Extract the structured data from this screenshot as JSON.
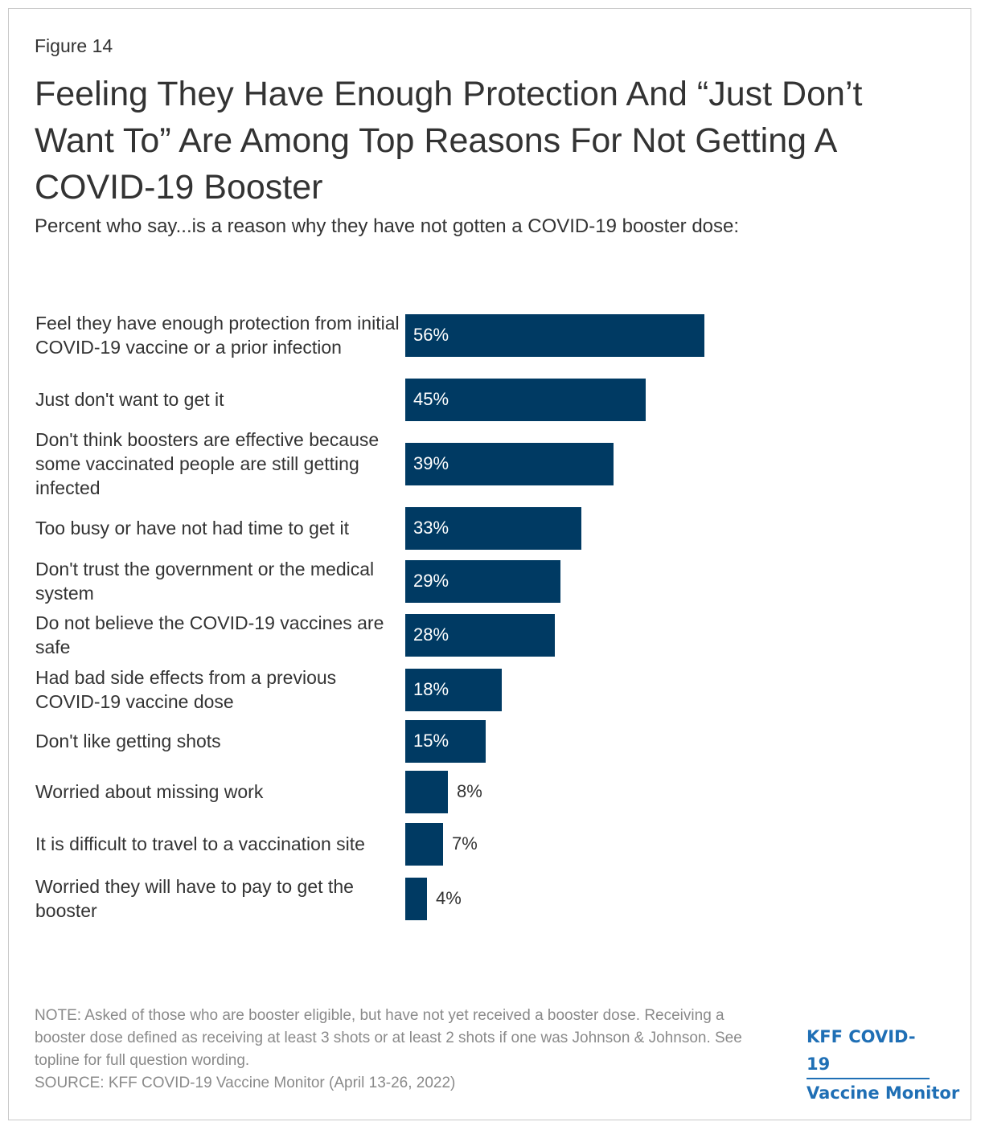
{
  "figure_label": "Figure 14",
  "title": "Feeling They Have Enough Protection And “Just Don’t Want To” Are Among Top Reasons For Not Getting A COVID-19 Booster",
  "subtitle": "Percent who say...is a reason why they have not gotten a COVID-19 booster dose:",
  "bar_color": "#003a63",
  "chart_data": {
    "type": "bar",
    "orientation": "horizontal",
    "categories": [
      "Feel they have enough protection from initial COVID-19 vaccine or a prior infection",
      "Just don't want to get it",
      "Don't think boosters are effective because some vaccinated people are still getting infected",
      "Too busy or have not had time to get it",
      "Don't trust the government or the medical system",
      "Do not believe the COVID-19 vaccines are safe",
      "Had bad side effects from a previous COVID-19 vaccine dose",
      "Don't like getting shots",
      "Worried about missing work",
      "It is difficult to travel to a vaccination site",
      "Worried they will have to pay to get the booster"
    ],
    "values": [
      56,
      45,
      39,
      33,
      29,
      28,
      18,
      15,
      8,
      7,
      4
    ],
    "labels": [
      "56%",
      "45%",
      "39%",
      "33%",
      "29%",
      "28%",
      "18%",
      "15%",
      "8%",
      "7%",
      "4%"
    ],
    "unit": "%",
    "xlim": [
      0,
      100
    ],
    "title": "Feeling They Have Enough Protection And “Just Don’t Want To” Are Among Top Reasons For Not Getting A COVID-19 Booster",
    "xlabel": "",
    "ylabel": "",
    "grid": false,
    "legend": "none"
  },
  "note": "NOTE: Asked of those who are booster eligible, but have not yet received a booster dose. Receiving a booster dose defined as receiving at least 3 shots or at least 2 shots if one was Johnson & Johnson. See topline for full question wording.",
  "source": "SOURCE: KFF COVID-19 Vaccine Monitor (April 13-26, 2022)",
  "logo": {
    "line1": "KFF COVID-19",
    "line2": "Vaccine Monitor"
  }
}
